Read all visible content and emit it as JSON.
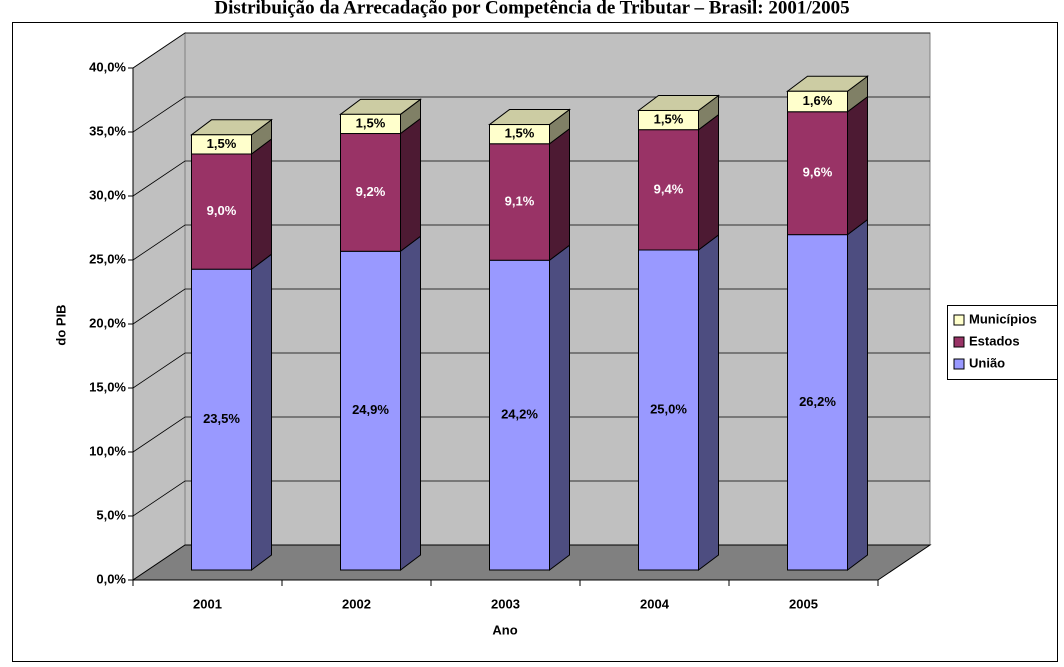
{
  "chart_data": {
    "type": "bar3d_stacked",
    "title": "Distribuição da Arrecadação por Competência de Tributar – Brasil: 2001/2005",
    "x_label": "Ano",
    "y_label": "do PIB",
    "categories": [
      "2001",
      "2002",
      "2003",
      "2004",
      "2005"
    ],
    "series": [
      {
        "name": "União",
        "color": "#9999ff",
        "values": [
          23.5,
          24.9,
          24.2,
          25.0,
          26.2
        ],
        "value_labels": [
          "23,5%",
          "24,9%",
          "24,2%",
          "25,0%",
          "26,2%"
        ]
      },
      {
        "name": "Estados",
        "color": "#993366",
        "values": [
          9.0,
          9.2,
          9.1,
          9.4,
          9.6
        ],
        "value_labels": [
          "9,0%",
          "9,2%",
          "9,1%",
          "9,4%",
          "9,6%"
        ]
      },
      {
        "name": "Municípios",
        "color": "#ffffcc",
        "values": [
          1.5,
          1.5,
          1.5,
          1.5,
          1.6
        ],
        "value_labels": [
          "1,5%",
          "1,5%",
          "1,5%",
          "1,5%",
          "1,6%"
        ]
      }
    ],
    "ylim": [
      0,
      40
    ],
    "yticks": [
      {
        "value": 0,
        "label": "0,0%"
      },
      {
        "value": 5,
        "label": "5,0%"
      },
      {
        "value": 10,
        "label": "10,0%"
      },
      {
        "value": 15,
        "label": "15,0%"
      },
      {
        "value": 20,
        "label": "20,0%"
      },
      {
        "value": 25,
        "label": "25,0%"
      },
      {
        "value": 30,
        "label": "30,0%"
      },
      {
        "value": 35,
        "label": "35,0%"
      },
      {
        "value": 40,
        "label": "40,0%"
      }
    ],
    "grid": true,
    "legend": "right"
  }
}
